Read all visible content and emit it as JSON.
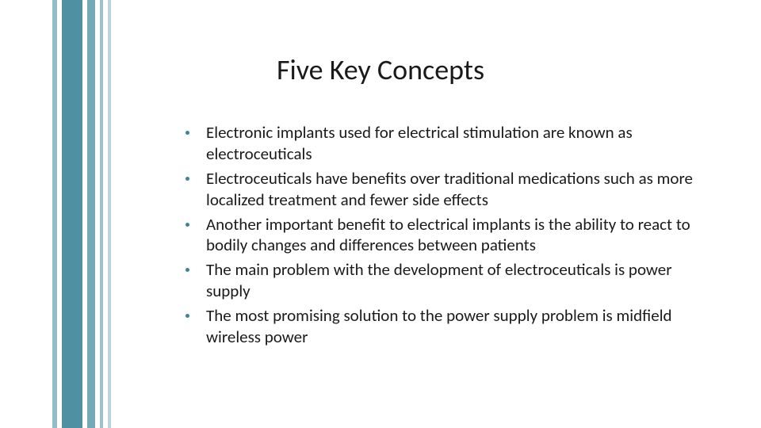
{
  "slide": {
    "background_color": "#ffffff",
    "title": {
      "text": "Five Key Concepts",
      "fontsize": 36,
      "color": "#1a1a1a",
      "font_weight": 400
    },
    "stripes": {
      "color": "#3c8598",
      "opacity_levels": [
        0.55,
        0.9,
        0.7,
        0.5,
        0.35
      ]
    },
    "bullets": {
      "marker_color": "#3c8598",
      "text_color": "#1a1a1a",
      "fontsize": 21,
      "line_height": 1.28,
      "items": [
        "Electronic implants used for electrical stimulation are known as electroceuticals",
        "Electroceuticals have benefits over traditional medications such as more localized treatment and fewer side effects",
        "Another important benefit to electrical implants is the ability to react to bodily changes and differences between patients",
        "The main problem with the development of electroceuticals is power supply",
        "The most promising solution to the power supply problem is midfield wireless power"
      ]
    }
  }
}
